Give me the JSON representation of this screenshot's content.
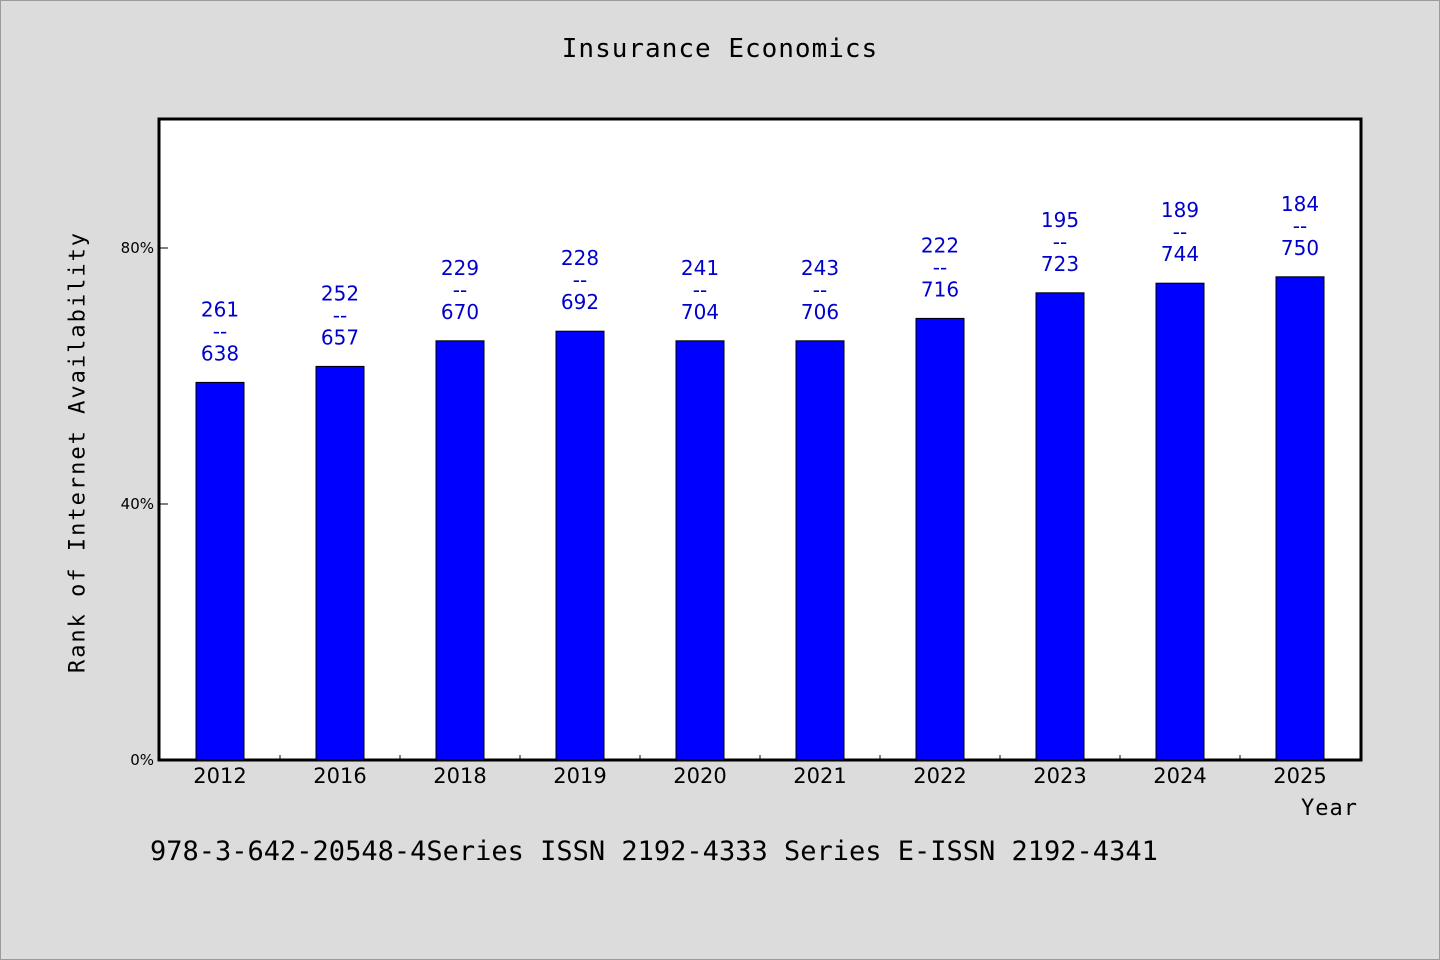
{
  "chart_data": {
    "type": "bar",
    "title": "Insurance Economics",
    "xlabel": "Year",
    "ylabel": "Rank of Internet Availability",
    "categories": [
      "2012",
      "2016",
      "2018",
      "2019",
      "2020",
      "2021",
      "2022",
      "2023",
      "2024",
      "2025"
    ],
    "values": [
      59,
      61.5,
      65.5,
      67,
      65.5,
      65.5,
      69,
      73,
      74.5,
      75.5
    ],
    "value_unit": "%",
    "data_labels": [
      {
        "rank": "261",
        "sep": "--",
        "total": "638"
      },
      {
        "rank": "252",
        "sep": "--",
        "total": "657"
      },
      {
        "rank": "229",
        "sep": "--",
        "total": "670"
      },
      {
        "rank": "228",
        "sep": "--",
        "total": "692"
      },
      {
        "rank": "241",
        "sep": "--",
        "total": "704"
      },
      {
        "rank": "243",
        "sep": "--",
        "total": "706"
      },
      {
        "rank": "222",
        "sep": "--",
        "total": "716"
      },
      {
        "rank": "195",
        "sep": "--",
        "total": "723"
      },
      {
        "rank": "189",
        "sep": "--",
        "total": "744"
      },
      {
        "rank": "184",
        "sep": "--",
        "total": "750"
      }
    ],
    "ylim": [
      0,
      100
    ],
    "yticks": [
      0,
      40,
      80
    ],
    "ytick_labels": [
      "0%",
      "40%",
      "80%"
    ],
    "grid": false,
    "legend": "none",
    "bar_color": "#0000ff",
    "label_color": "#0000cc"
  },
  "footer": "978-3-642-20548-4Series ISSN 2192-4333 Series E-ISSN 2192-4341"
}
